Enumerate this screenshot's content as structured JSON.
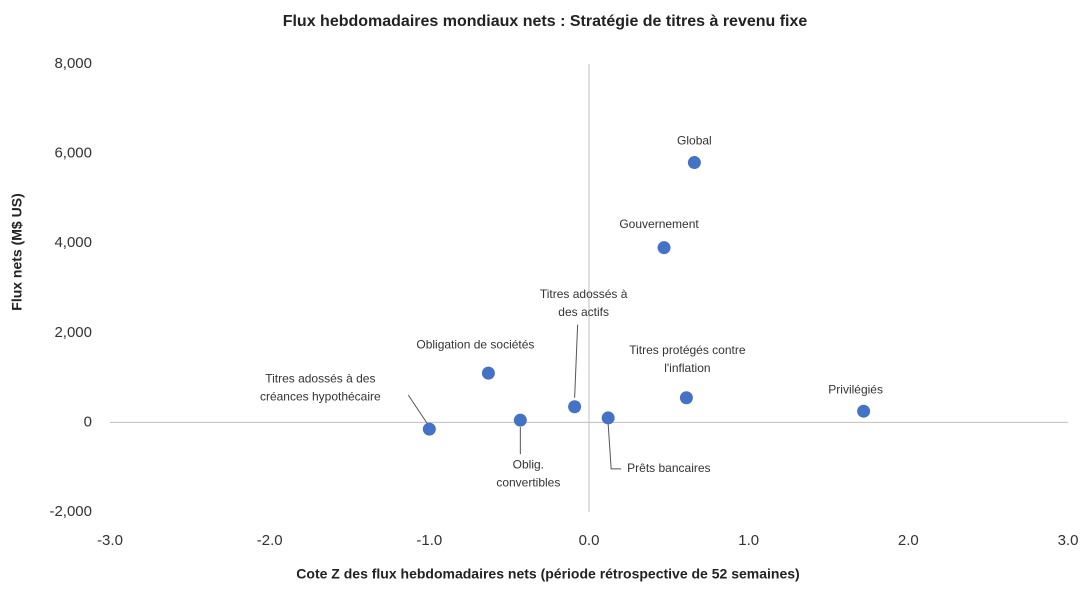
{
  "chart_data": {
    "type": "scatter",
    "title": "Flux hebdomadaires mondiaux nets : Stratégie de titres à revenu fixe",
    "xlabel": "Cote Z des flux hebdomadaires nets (période rétrospective de 52 semaines)",
    "ylabel": "Flux nets (M$ US)",
    "xlim": [
      -3,
      3
    ],
    "ylim": [
      -2000,
      8000
    ],
    "xticks": [
      {
        "value": -3,
        "label": "-3.0"
      },
      {
        "value": -2,
        "label": "-2.0"
      },
      {
        "value": -1,
        "label": "-1.0"
      },
      {
        "value": 0,
        "label": "0.0"
      },
      {
        "value": 1,
        "label": "1.0"
      },
      {
        "value": 2,
        "label": "2.0"
      },
      {
        "value": 3,
        "label": "3.0"
      }
    ],
    "yticks": [
      {
        "value": -2000,
        "label": "-2,000"
      },
      0,
      {
        "value": 2000,
        "label": "2,000"
      },
      {
        "value": 4000,
        "label": "4,000"
      },
      {
        "value": 6000,
        "label": "6,000"
      },
      {
        "value": 8000,
        "label": "8,000"
      }
    ],
    "color": "#4472c4",
    "x": [
      0.66,
      0.47,
      -0.09,
      -0.63,
      -1.0,
      -0.43,
      0.12,
      0.61,
      1.72
    ],
    "values": [
      5800,
      3900,
      350,
      1100,
      -150,
      50,
      100,
      550,
      250
    ],
    "labels": [
      [
        "Global"
      ],
      [
        "Gouvernement"
      ],
      [
        "Titres adossés à",
        "des actifs"
      ],
      [
        "Obligation de sociétés"
      ],
      [
        "Titres adossés à des",
        "créances hypothécaire"
      ],
      [
        "Oblig.",
        "convertibles"
      ],
      [
        "Prêts bancaires"
      ],
      [
        "Titres protégés contre",
        "l'inflation"
      ],
      [
        "Privilégiés"
      ]
    ]
  }
}
